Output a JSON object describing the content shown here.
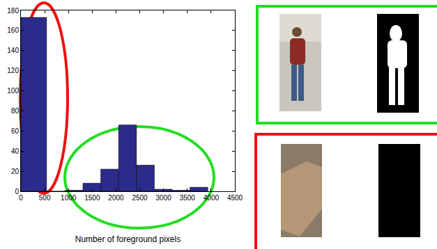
{
  "chart_data": {
    "type": "histogram",
    "x_label": "Number of foreground pixels",
    "bins": [
      0,
      540,
      930,
      1305,
      1680,
      2055,
      2430,
      2805,
      3180,
      3555,
      3930
    ],
    "counts": [
      173,
      0,
      1,
      8,
      22,
      66,
      26,
      2,
      1,
      4
    ],
    "color": "#2b2b8a",
    "xlim": [
      0,
      4500
    ],
    "xticks": [
      0,
      500,
      1000,
      1500,
      2000,
      2500,
      3000,
      3500,
      4000,
      4500
    ],
    "ylim": [
      0,
      180
    ],
    "yticks": [
      0,
      20,
      40,
      60,
      80,
      100,
      120,
      140,
      160,
      180
    ],
    "grid": false
  }
}
